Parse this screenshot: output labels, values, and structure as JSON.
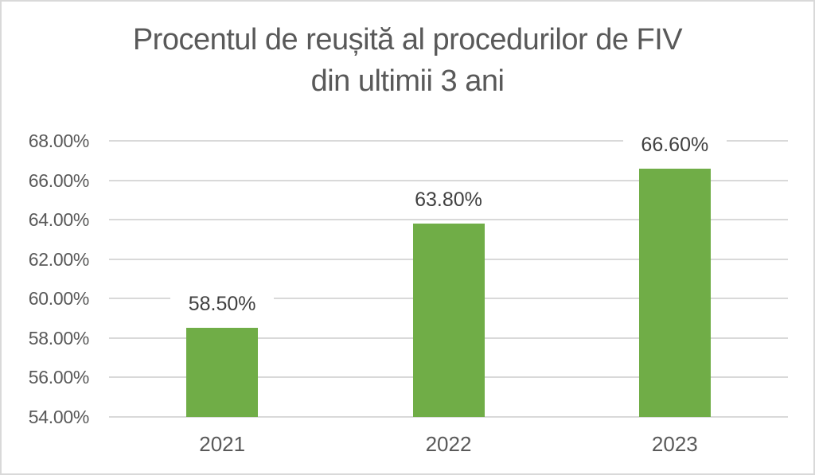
{
  "chart_data": {
    "type": "bar",
    "title": "Procentul de reușită al procedurilor de FIV din ultimii 3 ani",
    "title_lines": [
      "Procentul de reușită al procedurilor de FIV",
      "din ultimii 3 ani"
    ],
    "categories": [
      "2021",
      "2022",
      "2023"
    ],
    "values": [
      58.5,
      63.8,
      66.6
    ],
    "data_labels": [
      "58.50%",
      "63.80%",
      "66.60%"
    ],
    "y_ticks": [
      "54.00%",
      "56.00%",
      "58.00%",
      "60.00%",
      "62.00%",
      "64.00%",
      "66.00%",
      "68.00%"
    ],
    "ylim": [
      54,
      68
    ],
    "y_step": 2,
    "xlabel": "",
    "ylabel": "",
    "grid": true,
    "legend": false,
    "colors": {
      "bar": "#70AD47",
      "gridline": "#D9D9D9",
      "title_text": "#595959",
      "axis_text": "#595959",
      "data_label_text": "#404040",
      "background": "#FFFFFF",
      "border": "#D9D9D9"
    }
  }
}
